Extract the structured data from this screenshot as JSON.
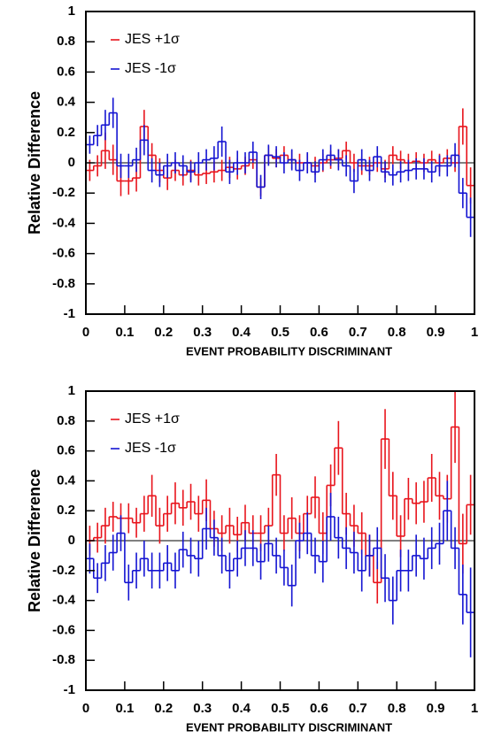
{
  "chart_data": [
    {
      "type": "histogram",
      "xlabel": "EVENT PROBABILITY DISCRIMINANT",
      "ylabel": "Relative Difference",
      "bins": [
        0,
        0.02,
        0.04,
        0.06,
        0.08,
        0.1,
        0.12,
        0.14,
        0.16,
        0.18,
        0.2,
        0.22,
        0.24,
        0.26,
        0.28,
        0.3,
        0.32,
        0.34,
        0.36,
        0.38,
        0.4,
        0.42,
        0.44,
        0.46,
        0.48,
        0.5,
        0.52,
        0.54,
        0.56,
        0.58,
        0.6,
        0.62,
        0.64,
        0.66,
        0.68,
        0.7,
        0.72,
        0.74,
        0.76,
        0.78,
        0.8,
        0.82,
        0.84,
        0.86,
        0.88,
        0.9,
        0.92,
        0.94,
        0.96,
        0.98,
        1
      ],
      "xlim": [
        0,
        1
      ],
      "xticks": [
        0,
        0.1,
        0.2,
        0.3,
        0.4,
        0.5,
        0.6,
        0.7,
        0.8,
        0.9,
        1
      ],
      "ylim": [
        -1,
        1
      ],
      "yticks": [
        1,
        0.8,
        0.6,
        0.4,
        0.2,
        0,
        -0.2,
        -0.4,
        -0.6,
        -0.8,
        -1
      ],
      "legend": "upper left",
      "series": [
        {
          "name": "JES +1σ",
          "color": "#e8141c",
          "values": [
            -0.05,
            -0.02,
            0.08,
            0.02,
            -0.12,
            -0.12,
            -0.1,
            0.24,
            0.05,
            -0.05,
            -0.1,
            -0.05,
            -0.08,
            -0.05,
            -0.08,
            -0.07,
            -0.06,
            -0.05,
            -0.03,
            -0.04,
            -0.02,
            0.02,
            -0.16,
            0.05,
            0.03,
            0.05,
            0.02,
            0,
            0,
            -0.02,
            0,
            0.02,
            0.03,
            0.08,
            0,
            -0.02,
            -0.02,
            0,
            -0.04,
            0.05,
            0.02,
            0,
            0.01,
            0,
            0.02,
            0,
            0.03,
            0,
            0.24,
            -0.15
          ],
          "errors": [
            0.07,
            0.07,
            0.12,
            0.1,
            0.1,
            0.09,
            0.09,
            0.11,
            0.08,
            0.08,
            0.08,
            0.07,
            0.07,
            0.07,
            0.07,
            0.07,
            0.07,
            0.07,
            0.07,
            0.07,
            0.06,
            0.06,
            0.06,
            0.06,
            0.06,
            0.06,
            0.06,
            0.06,
            0.06,
            0.06,
            0.06,
            0.06,
            0.06,
            0.06,
            0.06,
            0.06,
            0.06,
            0.06,
            0.06,
            0.06,
            0.06,
            0.06,
            0.06,
            0.06,
            0.06,
            0.06,
            0.06,
            0.06,
            0.12,
            0.12
          ]
        },
        {
          "name": "JES -1σ",
          "color": "#1414d2",
          "values": [
            0.12,
            0.18,
            0.25,
            0.33,
            -0.02,
            -0.02,
            0.02,
            0.15,
            -0.05,
            -0.08,
            -0.02,
            0,
            -0.02,
            -0.06,
            0,
            0.02,
            0.03,
            0.14,
            -0.06,
            0,
            0,
            0.07,
            -0.16,
            0.05,
            0.04,
            0,
            0.02,
            -0.05,
            0,
            -0.06,
            0.02,
            0.05,
            0.02,
            -0.02,
            -0.12,
            0.02,
            -0.05,
            0.04,
            -0.06,
            -0.08,
            -0.06,
            -0.05,
            -0.04,
            -0.04,
            -0.06,
            -0.02,
            -0.02,
            0.05,
            -0.2,
            -0.36
          ],
          "errors": [
            0.06,
            0.07,
            0.1,
            0.1,
            0.08,
            0.08,
            0.08,
            0.1,
            0.08,
            0.08,
            0.08,
            0.07,
            0.07,
            0.07,
            0.07,
            0.07,
            0.08,
            0.1,
            0.08,
            0.08,
            0.07,
            0.07,
            0.08,
            0.07,
            0.07,
            0.07,
            0.07,
            0.07,
            0.07,
            0.07,
            0.07,
            0.07,
            0.07,
            0.07,
            0.08,
            0.07,
            0.07,
            0.07,
            0.07,
            0.07,
            0.07,
            0.07,
            0.07,
            0.07,
            0.07,
            0.07,
            0.07,
            0.08,
            0.1,
            0.13
          ]
        }
      ]
    },
    {
      "type": "histogram",
      "xlabel": "EVENT PROBABILITY DISCRIMINANT",
      "ylabel": "Relative Difference",
      "bins": [
        0,
        0.02,
        0.04,
        0.06,
        0.08,
        0.1,
        0.12,
        0.14,
        0.16,
        0.18,
        0.2,
        0.22,
        0.24,
        0.26,
        0.28,
        0.3,
        0.32,
        0.34,
        0.36,
        0.38,
        0.4,
        0.42,
        0.44,
        0.46,
        0.48,
        0.5,
        0.52,
        0.54,
        0.56,
        0.58,
        0.6,
        0.62,
        0.64,
        0.66,
        0.68,
        0.7,
        0.72,
        0.74,
        0.76,
        0.78,
        0.8,
        0.82,
        0.84,
        0.86,
        0.88,
        0.9,
        0.92,
        0.94,
        0.96,
        0.98,
        1
      ],
      "xlim": [
        0,
        1
      ],
      "xticks": [
        0,
        0.1,
        0.2,
        0.3,
        0.4,
        0.5,
        0.6,
        0.7,
        0.8,
        0.9,
        1
      ],
      "ylim": [
        -1,
        1
      ],
      "yticks": [
        1,
        0.8,
        0.6,
        0.4,
        0.2,
        0,
        -0.2,
        -0.4,
        -0.6,
        -0.8,
        -1
      ],
      "legend": "upper left",
      "series": [
        {
          "name": "JES +1σ",
          "color": "#e8141c",
          "values": [
            0,
            0.02,
            0.1,
            0.16,
            0.15,
            0.15,
            0.12,
            0.18,
            0.3,
            0.1,
            0.18,
            0.25,
            0.22,
            0.26,
            0.18,
            0.27,
            0.08,
            0.05,
            0.1,
            0.04,
            0.12,
            0.05,
            0.05,
            0.1,
            0.44,
            0.05,
            0.15,
            0.05,
            0.18,
            0.29,
            0.05,
            0.37,
            0.62,
            0.18,
            0.1,
            0.05,
            -0.1,
            -0.28,
            0.68,
            0.3,
            0.03,
            0.28,
            0.25,
            0.26,
            0.42,
            0.3,
            0.28,
            0.76,
            -0.02,
            0.24
          ],
          "errors": [
            0.1,
            0.1,
            0.12,
            0.1,
            0.1,
            0.1,
            0.1,
            0.12,
            0.14,
            0.12,
            0.12,
            0.14,
            0.12,
            0.12,
            0.12,
            0.14,
            0.12,
            0.12,
            0.12,
            0.12,
            0.12,
            0.12,
            0.12,
            0.12,
            0.14,
            0.12,
            0.14,
            0.12,
            0.12,
            0.14,
            0.14,
            0.14,
            0.18,
            0.14,
            0.14,
            0.14,
            0.14,
            0.14,
            0.2,
            0.16,
            0.14,
            0.14,
            0.14,
            0.14,
            0.16,
            0.16,
            0.16,
            0.24,
            0.2,
            0.2
          ]
        },
        {
          "name": "JES -1σ",
          "color": "#1414d2",
          "values": [
            -0.12,
            -0.25,
            -0.15,
            -0.08,
            0.05,
            -0.28,
            -0.2,
            -0.12,
            -0.2,
            -0.2,
            -0.15,
            -0.2,
            -0.06,
            -0.1,
            -0.12,
            0.08,
            0.02,
            -0.1,
            -0.2,
            -0.12,
            -0.05,
            -0.05,
            -0.14,
            -0.02,
            -0.1,
            -0.18,
            -0.3,
            0,
            0.05,
            -0.1,
            -0.14,
            0.16,
            0.02,
            -0.05,
            -0.08,
            -0.2,
            -0.1,
            -0.05,
            -0.25,
            -0.4,
            -0.2,
            -0.2,
            -0.1,
            -0.12,
            -0.05,
            -0.02,
            0.2,
            -0.05,
            -0.36,
            -0.48
          ],
          "errors": [
            0.1,
            0.1,
            0.12,
            0.12,
            0.12,
            0.12,
            0.12,
            0.12,
            0.12,
            0.12,
            0.12,
            0.12,
            0.12,
            0.12,
            0.12,
            0.14,
            0.12,
            0.12,
            0.12,
            0.12,
            0.12,
            0.12,
            0.12,
            0.12,
            0.12,
            0.12,
            0.14,
            0.12,
            0.14,
            0.12,
            0.14,
            0.16,
            0.14,
            0.14,
            0.14,
            0.14,
            0.14,
            0.14,
            0.16,
            0.16,
            0.14,
            0.14,
            0.14,
            0.14,
            0.14,
            0.14,
            0.2,
            0.14,
            0.2,
            0.3
          ]
        }
      ]
    }
  ]
}
